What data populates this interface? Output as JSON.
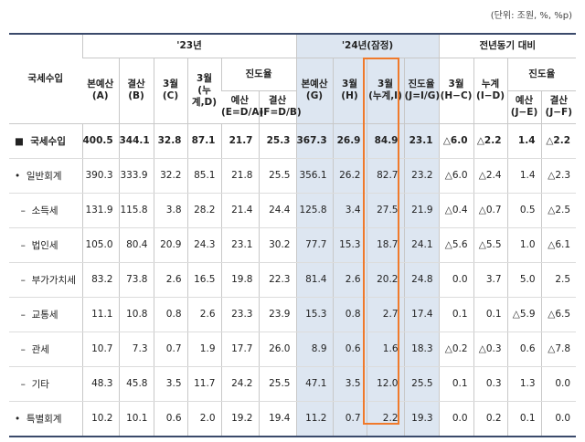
{
  "unit_note": "(단위: 조원, %, %p)",
  "header": {
    "row_label": "국세수입",
    "group_23": "'23년",
    "group_24": "'24년(잠정)",
    "group_yoy": "전년동기 대비",
    "progress": "진도율",
    "progress24": "진도율\n(J=I/G)",
    "cols": {
      "a": "본예산\n(A)",
      "b": "결산\n(B)",
      "c": "3월\n(C)",
      "d": "3월\n(누계,D)",
      "e": "예산\n(E=D/A)",
      "f": "결산\n(F=D/B)",
      "g": "본예산\n(G)",
      "h": "3월\n(H)",
      "i": "3월\n(누계,I)",
      "hc": "3월\n(H−C)",
      "id": "누계\n(I−D)",
      "je": "예산\n(J−E)",
      "jf": "결산\n(J−F)"
    }
  },
  "rows": [
    {
      "label": "■  국세수입",
      "a": "400.5",
      "b": "344.1",
      "c": "32.8",
      "d": "87.1",
      "e": "21.7",
      "f": "25.3",
      "g": "367.3",
      "h": "26.9",
      "i": "84.9",
      "j": "23.1",
      "hc": "△6.0",
      "id": "△2.2",
      "je": "1.4",
      "jf": "△2.2"
    },
    {
      "label": "•  일반회계",
      "a": "390.3",
      "b": "333.9",
      "c": "32.2",
      "d": "85.1",
      "e": "21.8",
      "f": "25.5",
      "g": "356.1",
      "h": "26.2",
      "i": "82.7",
      "j": "23.2",
      "hc": "△6.0",
      "id": "△2.4",
      "je": "1.4",
      "jf": "△2.3"
    },
    {
      "label": "  –  소득세",
      "a": "131.9",
      "b": "115.8",
      "c": "3.8",
      "d": "28.2",
      "e": "21.4",
      "f": "24.4",
      "g": "125.8",
      "h": "3.4",
      "i": "27.5",
      "j": "21.9",
      "hc": "△0.4",
      "id": "△0.7",
      "je": "0.5",
      "jf": "△2.5"
    },
    {
      "label": "  –  법인세",
      "a": "105.0",
      "b": "80.4",
      "c": "20.9",
      "d": "24.3",
      "e": "23.1",
      "f": "30.2",
      "g": "77.7",
      "h": "15.3",
      "i": "18.7",
      "j": "24.1",
      "hc": "△5.6",
      "id": "△5.5",
      "je": "1.0",
      "jf": "△6.1"
    },
    {
      "label": "  –  부가가치세",
      "a": "83.2",
      "b": "73.8",
      "c": "2.6",
      "d": "16.5",
      "e": "19.8",
      "f": "22.3",
      "g": "81.4",
      "h": "2.6",
      "i": "20.2",
      "j": "24.8",
      "hc": "0.0",
      "id": "3.7",
      "je": "5.0",
      "jf": "2.5"
    },
    {
      "label": "  –  교통세",
      "a": "11.1",
      "b": "10.8",
      "c": "0.8",
      "d": "2.6",
      "e": "23.3",
      "f": "23.9",
      "g": "15.3",
      "h": "0.8",
      "i": "2.7",
      "j": "17.4",
      "hc": "0.1",
      "id": "0.1",
      "je": "△5.9",
      "jf": "△6.5"
    },
    {
      "label": "  –  관세",
      "a": "10.7",
      "b": "7.3",
      "c": "0.7",
      "d": "1.9",
      "e": "17.7",
      "f": "26.0",
      "g": "8.9",
      "h": "0.6",
      "i": "1.6",
      "j": "18.3",
      "hc": "△0.2",
      "id": "△0.3",
      "je": "0.6",
      "jf": "△7.8"
    },
    {
      "label": "  –  기타",
      "a": "48.3",
      "b": "45.8",
      "c": "3.5",
      "d": "11.7",
      "e": "24.2",
      "f": "25.5",
      "g": "47.1",
      "h": "3.5",
      "i": "12.0",
      "j": "25.5",
      "hc": "0.1",
      "id": "0.3",
      "je": "1.3",
      "jf": "0.0"
    },
    {
      "label": "•  특별회계",
      "a": "10.2",
      "b": "10.1",
      "c": "0.6",
      "d": "2.0",
      "e": "19.2",
      "f": "19.4",
      "g": "11.2",
      "h": "0.7",
      "i": "2.2",
      "j": "19.3",
      "hc": "0.0",
      "id": "0.2",
      "je": "0.1",
      "jf": "0.0"
    }
  ],
  "colors": {
    "header_line": "#3a4a6b",
    "shade_2024": "#dde6f1",
    "highlight_box": "#f07a2b"
  }
}
